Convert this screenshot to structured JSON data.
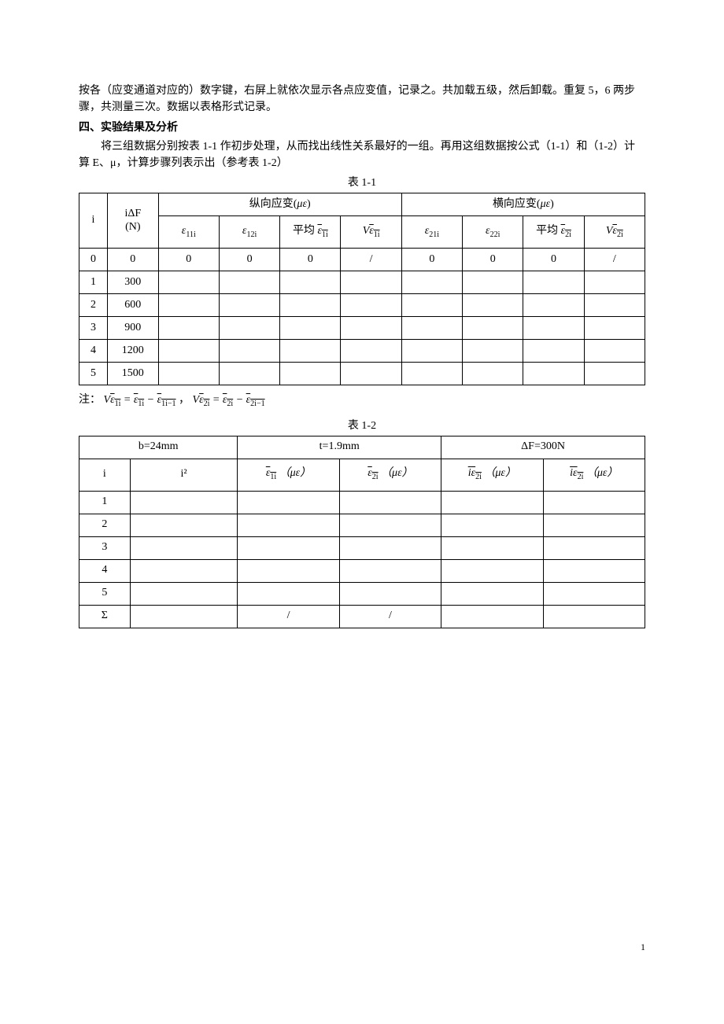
{
  "para1": "按各（应变通道对应的）数字键，右屏上就依次显示各点应变值，记录之。共加载五级，然后卸载。重复 5，6 两步骤，共测量三次。数据以表格形式记录。",
  "section_title": "四、实验结果及分析",
  "para2": "将三组数据分别按表 1-1 作初步处理，从而找出线性关系最好的一组。再用这组数据按公式（1-1）和（1-2）计算 E、μ，计算步骤列表示出（参考表 1-2）",
  "table1": {
    "caption": "表 1-1",
    "header": {
      "col_i": "i",
      "col_idF_line1": "iΔF",
      "col_idF_line2": "(N)",
      "group_long": "纵向应变(",
      "group_trans": "横向应变(",
      "mu_eps": "με",
      "close": ")",
      "e11": "ε",
      "e11_sub": "11i",
      "e12": "ε",
      "e12_sub": "12i",
      "avg1_pre": "平均 ",
      "avg1_eps": "ε",
      "avg1_sub": "1i",
      "d1_pre": "V",
      "d1_eps": "ε",
      "d1_sub": "1i",
      "e21": "ε",
      "e21_sub": "21i",
      "e22": "ε",
      "e22_sub": "22i",
      "avg2_pre": "平均 ",
      "avg2_eps": "ε",
      "avg2_sub": "2i",
      "d2_pre": "V",
      "d2_eps": "ε",
      "d2_sub": "2i"
    },
    "rows": [
      {
        "i": "0",
        "idF": "0",
        "c": [
          "0",
          "0",
          "0",
          "/",
          "0",
          "0",
          "0",
          "/"
        ]
      },
      {
        "i": "1",
        "idF": "300",
        "c": [
          "",
          "",
          "",
          "",
          "",
          "",
          "",
          ""
        ]
      },
      {
        "i": "2",
        "idF": "600",
        "c": [
          "",
          "",
          "",
          "",
          "",
          "",
          "",
          ""
        ]
      },
      {
        "i": "3",
        "idF": "900",
        "c": [
          "",
          "",
          "",
          "",
          "",
          "",
          "",
          ""
        ]
      },
      {
        "i": "4",
        "idF": "1200",
        "c": [
          "",
          "",
          "",
          "",
          "",
          "",
          "",
          ""
        ]
      },
      {
        "i": "5",
        "idF": "1500",
        "c": [
          "",
          "",
          "",
          "",
          "",
          "",
          "",
          ""
        ]
      }
    ]
  },
  "note": {
    "prefix": "注：",
    "f1_lhs_pre": "V",
    "f1_eps": "ε",
    "f1_sub_a": "1i",
    "eq": " = ",
    "f1_sub_b": "1i",
    "minus": " − ",
    "f1_sub_c": "1i−1",
    "sep": "，  ",
    "f2_lhs_pre": "V",
    "f2_sub_a": "2i",
    "f2_sub_b": "2i",
    "f2_sub_c": "2i−1"
  },
  "table2": {
    "caption": "表 1-2",
    "header": {
      "h1": "b=24mm",
      "h2": "t=1.9mm",
      "h3": "ΔF=300N",
      "c1": "i",
      "c2": "i²",
      "c3_eps": "ε",
      "c3_sub": "1i",
      "c3_unit": " （με）",
      "c4_eps": "ε",
      "c4_sub": "2i",
      "c4_unit": " （με）",
      "c5_pre": "i",
      "c5_eps": "ε",
      "c5_sub": "2i",
      "c5_unit": " （με）",
      "c6_pre": "i",
      "c6_eps": "ε",
      "c6_sub": "2i",
      "c6_unit": " （με）"
    },
    "rows": [
      {
        "i": "1",
        "c": [
          "",
          "",
          "",
          "",
          ""
        ]
      },
      {
        "i": "2",
        "c": [
          "",
          "",
          "",
          "",
          ""
        ]
      },
      {
        "i": "3",
        "c": [
          "",
          "",
          "",
          "",
          ""
        ]
      },
      {
        "i": "4",
        "c": [
          "",
          "",
          "",
          "",
          ""
        ]
      },
      {
        "i": "5",
        "c": [
          "",
          "",
          "",
          "",
          ""
        ]
      },
      {
        "i": "Σ",
        "c": [
          "",
          "/",
          "/",
          "",
          ""
        ]
      }
    ]
  },
  "pagenum": "1"
}
